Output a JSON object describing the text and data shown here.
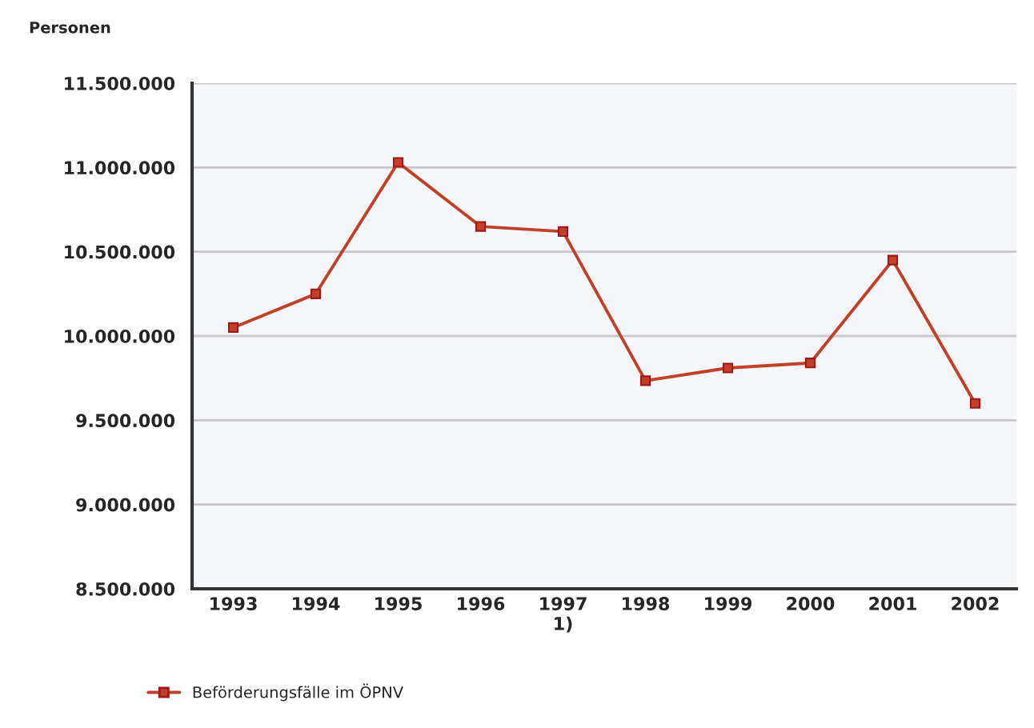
{
  "chart_data": {
    "type": "line",
    "ylabel": "Personen",
    "categories": [
      "1993",
      "1994",
      "1995",
      "1996",
      "1997\n1)",
      "1998",
      "1999",
      "2000",
      "2001",
      "2002"
    ],
    "series": [
      {
        "name": "Beförderungsfälle im ÖPNV",
        "color": "#c0402a",
        "values": [
          10050000,
          10250000,
          11030000,
          10650000,
          10620000,
          9735000,
          9810000,
          9840000,
          10450000,
          9600000
        ]
      }
    ],
    "ylim": [
      8500000,
      11500000
    ],
    "yticks": [
      {
        "value": 8500000,
        "label": "8.500.000"
      },
      {
        "value": 9000000,
        "label": "9.000.000"
      },
      {
        "value": 9500000,
        "label": "9.500.000"
      },
      {
        "value": 10000000,
        "label": "10.000.000"
      },
      {
        "value": 10500000,
        "label": "10.500.000"
      },
      {
        "value": 11000000,
        "label": "11.000.000"
      },
      {
        "value": 11500000,
        "label": "11.500.000"
      }
    ],
    "grid": "y",
    "legend": "bottom left",
    "marker": "square",
    "line_style": "solid"
  }
}
